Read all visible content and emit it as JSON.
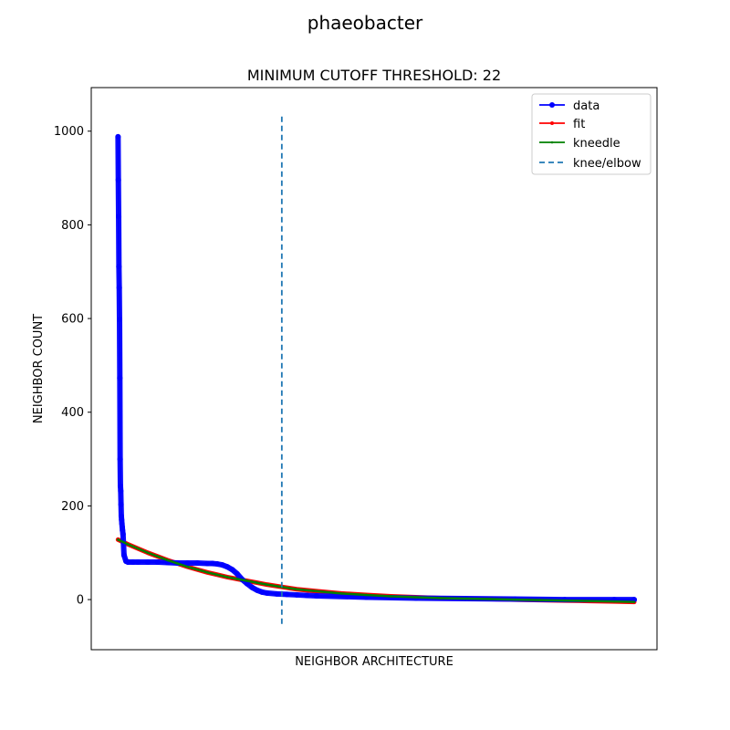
{
  "figure": {
    "suptitle": "phaeobacter"
  },
  "chart_data": {
    "type": "line",
    "title": "MINIMUM CUTOFF THRESHOLD: 22",
    "xlabel": "NEIGHBOR ARCHITECTURE",
    "ylabel": "NEIGHBOR COUNT",
    "xlim": [
      -27,
      543
    ],
    "ylim": [
      -107,
      1093
    ],
    "x_ticks_visible": false,
    "yticks": [
      0,
      200,
      400,
      600,
      800,
      1000
    ],
    "ytick_labels": [
      "0",
      "200",
      "400",
      "600",
      "800",
      "1000"
    ],
    "grid": false,
    "legend_position": "top-right",
    "knee_x": 165,
    "knee_line": {
      "label": "knee/elbow",
      "y_range": [
        -52,
        1039
      ]
    },
    "series": [
      {
        "name": "data",
        "color": "#0000ff",
        "marker": "o",
        "x": [
          0,
          0.3,
          0.6,
          0.9,
          1.2,
          1.5,
          1.8,
          2.1,
          2.4,
          2.7,
          3,
          3.3,
          3.6,
          3.9,
          4.2,
          4.5,
          5,
          6,
          8,
          10,
          15,
          20,
          30,
          40,
          50,
          60,
          70,
          80,
          90,
          95,
          100,
          105,
          110,
          115,
          120,
          125,
          130,
          135,
          140,
          145,
          150,
          160,
          170,
          180,
          190,
          200,
          250,
          300,
          350,
          400,
          450,
          500,
          520
        ],
        "values": [
          988,
          896,
          818,
          711,
          666,
          598,
          473,
          300,
          242,
          232,
          203,
          178,
          170,
          162,
          155,
          148,
          140,
          95,
          82,
          80,
          80,
          80,
          80,
          80,
          79,
          78,
          78,
          78,
          77,
          77,
          76,
          74,
          70,
          64,
          55,
          43,
          34,
          26,
          20,
          16,
          14,
          12,
          11,
          10,
          9,
          8,
          5,
          3,
          2,
          1,
          0,
          0,
          0
        ]
      },
      {
        "name": "fit",
        "color": "#ff0000",
        "marker": ".",
        "x": [
          0,
          10,
          20,
          30,
          40,
          50,
          60,
          70,
          80,
          90,
          100,
          110,
          120,
          130,
          140,
          150,
          165,
          180,
          200,
          225,
          250,
          275,
          300,
          325,
          350,
          375,
          400,
          425,
          450,
          475,
          500,
          520
        ],
        "values": [
          128,
          118,
          109,
          100,
          92,
          84,
          77,
          70,
          64,
          58,
          53,
          48,
          44,
          40,
          36,
          32,
          27,
          22,
          18,
          13,
          10,
          7,
          5,
          3,
          2,
          1,
          0,
          -1,
          -2,
          -3,
          -4,
          -5
        ]
      },
      {
        "name": "kneedle",
        "color": "#008000",
        "marker": ".",
        "x": [
          0,
          10,
          20,
          30,
          40,
          50,
          60,
          70,
          80,
          90,
          100,
          110,
          120,
          130,
          140,
          150,
          165,
          180,
          200,
          225,
          250,
          275,
          300,
          325,
          350,
          375,
          400,
          425,
          450,
          475,
          500,
          520
        ],
        "values": [
          128,
          118,
          109,
          100,
          92,
          84,
          77,
          70,
          64,
          58,
          53,
          48,
          44,
          40,
          36,
          32,
          27,
          22,
          18,
          13,
          10,
          7,
          5,
          3,
          2,
          1,
          0,
          -1,
          -2,
          -3,
          -4,
          -5
        ]
      }
    ]
  }
}
